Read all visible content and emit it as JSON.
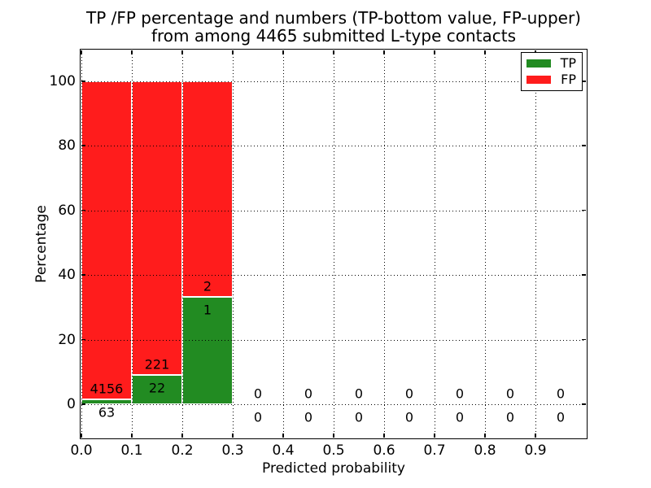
{
  "chart_data": {
    "type": "bar",
    "stacked": true,
    "title_line1": "TP /FP percentage and numbers (TP-bottom value, FP-upper)",
    "title_line2": "from among 4465 submitted L-type contacts",
    "xlabel": "Predicted probability",
    "ylabel": "Percentage",
    "total_submitted": 4465,
    "xlim": [
      0.0,
      1.0
    ],
    "ylim": [
      -10.3,
      109.5
    ],
    "xtick_values": [
      0.0,
      0.1,
      0.2,
      0.3,
      0.4,
      0.5,
      0.6,
      0.7,
      0.8,
      0.9
    ],
    "xtick_labels": [
      "0.0",
      "0.1",
      "0.2",
      "0.3",
      "0.4",
      "0.5",
      "0.6",
      "0.7",
      "0.8",
      "0.9"
    ],
    "ytick_values": [
      0,
      20,
      40,
      60,
      80,
      100
    ],
    "ytick_labels": [
      "0",
      "20",
      "40",
      "60",
      "80",
      "100"
    ],
    "grid": "dotted",
    "legend": {
      "position": "upper-right",
      "entries": [
        {
          "label": "TP",
          "color": "#228b22"
        },
        {
          "label": "FP",
          "color": "#ff1c1c"
        }
      ]
    },
    "bins": [
      {
        "x0": 0.0,
        "x1": 0.1,
        "tp_count": 63,
        "fp_count": 4156,
        "tp_pct": 1.49,
        "fp_pct": 98.51
      },
      {
        "x0": 0.1,
        "x1": 0.2,
        "tp_count": 22,
        "fp_count": 221,
        "tp_pct": 9.05,
        "fp_pct": 90.95
      },
      {
        "x0": 0.2,
        "x1": 0.3,
        "tp_count": 1,
        "fp_count": 2,
        "tp_pct": 33.33,
        "fp_pct": 66.67
      },
      {
        "x0": 0.3,
        "x1": 0.4,
        "tp_count": 0,
        "fp_count": 0,
        "tp_pct": 0,
        "fp_pct": 0
      },
      {
        "x0": 0.4,
        "x1": 0.5,
        "tp_count": 0,
        "fp_count": 0,
        "tp_pct": 0,
        "fp_pct": 0
      },
      {
        "x0": 0.5,
        "x1": 0.6,
        "tp_count": 0,
        "fp_count": 0,
        "tp_pct": 0,
        "fp_pct": 0
      },
      {
        "x0": 0.6,
        "x1": 0.7,
        "tp_count": 0,
        "fp_count": 0,
        "tp_pct": 0,
        "fp_pct": 0
      },
      {
        "x0": 0.7,
        "x1": 0.8,
        "tp_count": 0,
        "fp_count": 0,
        "tp_pct": 0,
        "fp_pct": 0
      },
      {
        "x0": 0.8,
        "x1": 0.9,
        "tp_count": 0,
        "fp_count": 0,
        "tp_pct": 0,
        "fp_pct": 0
      },
      {
        "x0": 0.9,
        "x1": 1.0,
        "tp_count": 0,
        "fp_count": 0,
        "tp_pct": 0,
        "fp_pct": 0
      }
    ],
    "annotation_offsets": {
      "fp_label": 3.2,
      "tp_label": -4.1
    }
  },
  "colors": {
    "tp": "#228b22",
    "fp": "#ff1c1c",
    "bar_edge": "#ffffff",
    "axes": "#000000",
    "grid": "#000000",
    "text": "#000000",
    "background": "#ffffff"
  }
}
